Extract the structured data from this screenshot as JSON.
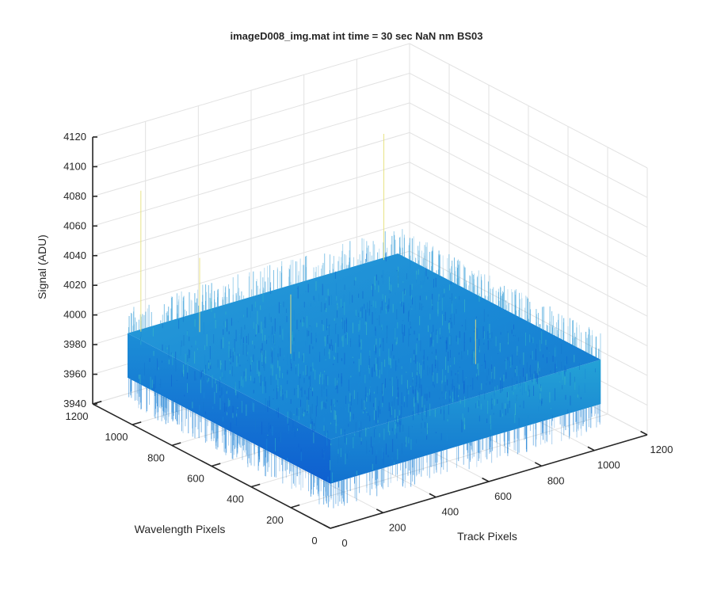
{
  "chart_data": {
    "type": "surface",
    "title": "imageD008_img.mat int time = 30 sec  NaN nm BS03",
    "xlabel": "Track Pixels",
    "ylabel": "Wavelength Pixels",
    "zlabel": "Signal (ADU)",
    "xlim": [
      0,
      1200
    ],
    "ylim": [
      0,
      1200
    ],
    "zlim": [
      3940,
      4120
    ],
    "x_ticks": [
      "0",
      "200",
      "400",
      "600",
      "800",
      "1000",
      "1200"
    ],
    "y_ticks": [
      "0",
      "200",
      "400",
      "600",
      "800",
      "1000",
      "1200"
    ],
    "z_ticks": [
      "3940",
      "3960",
      "3980",
      "4000",
      "4020",
      "4040",
      "4060",
      "4080",
      "4100",
      "4120"
    ],
    "data_extent": {
      "x": [
        0,
        1024
      ],
      "y": [
        0,
        1024
      ]
    },
    "signal_mean": 3985,
    "signal_band": [
      3970,
      4000
    ],
    "grid": true,
    "colormap": "parula",
    "colors": {
      "surface_low": "#0f5fd0",
      "surface_mid": "#1a8ad6",
      "surface_high": "#2fb3c9",
      "spike": "#e6e07a",
      "axis": "#262626",
      "grid": "#e2e2e2"
    }
  }
}
